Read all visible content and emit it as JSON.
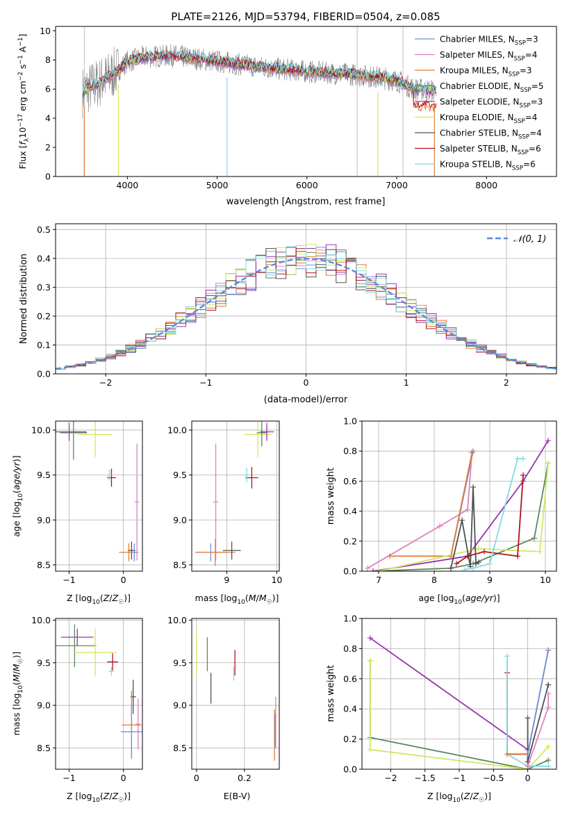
{
  "figure": {
    "title": "PLATE=2126, MJD=53794, FIBERID=0504, z=0.085"
  },
  "colors": {
    "Chabrier MILES": "#6f8fe0",
    "Salpeter MILES": "#e080c0",
    "Kroupa MILES": "#e07a30",
    "Chabrier ELODIE": "#5a8a5a",
    "Salpeter ELODIE": "#9a30b0",
    "Kroupa ELODIE": "#d0e860",
    "Chabrier STELIB": "#505050",
    "Salpeter STELIB": "#b01020",
    "Kroupa STELIB": "#80dbe0",
    "gaussian": "#5b8ad8"
  },
  "chart_data": [
    {
      "id": "spectrum",
      "type": "line",
      "xlabel": "wavelength [Angstrom, rest frame]",
      "ylabel": "Flux [f_λ 10^-17 erg cm^-2 s^-1 A^-1]",
      "xlim": [
        3200,
        8780
      ],
      "ylim": [
        0,
        10.3
      ],
      "xticks": [
        4000,
        5000,
        6000,
        7000,
        8000
      ],
      "yticks": [
        0,
        2,
        4,
        6,
        8,
        10
      ],
      "legend_position": "top-right",
      "legend": [
        {
          "name": "Chabrier MILES",
          "nssp": "3"
        },
        {
          "name": "Salpeter MILES",
          "nssp": "4"
        },
        {
          "name": "Kroupa MILES",
          "nssp": "3"
        },
        {
          "name": "Chabrier ELODIE",
          "nssp": "5"
        },
        {
          "name": "Salpeter ELODIE",
          "nssp": "3"
        },
        {
          "name": "Kroupa ELODIE",
          "nssp": "4"
        },
        {
          "name": "Chabrier STELIB",
          "nssp": "4"
        },
        {
          "name": "Salpeter STELIB",
          "nssp": "6"
        },
        {
          "name": "Kroupa STELIB",
          "nssp": "6"
        }
      ],
      "continuum_nodes": [
        [
          3500,
          5.8
        ],
        [
          3700,
          6.5
        ],
        [
          3900,
          7.3
        ],
        [
          4000,
          7.9
        ],
        [
          4200,
          8.2
        ],
        [
          4500,
          8.3
        ],
        [
          5000,
          7.9
        ],
        [
          5500,
          7.5
        ],
        [
          6000,
          7.2
        ],
        [
          6500,
          7.0
        ],
        [
          6800,
          6.8
        ],
        [
          7000,
          6.6
        ],
        [
          7200,
          6.0
        ],
        [
          7400,
          5.9
        ],
        [
          7600,
          5.8
        ]
      ]
    },
    {
      "id": "residuals",
      "type": "line",
      "xlabel": "(data-model)/error",
      "ylabel": "Normed distribution",
      "xlim": [
        -2.5,
        2.5
      ],
      "ylim": [
        0,
        0.52
      ],
      "xticks": [
        -2,
        -1,
        0,
        1,
        2
      ],
      "yticks": [
        0.0,
        0.1,
        0.2,
        0.3,
        0.4,
        0.5
      ],
      "legend_position": "top-right",
      "gaussian_label": "𝒩(0, 1)",
      "bin_width": 0.1
    },
    {
      "id": "age_vs_Z",
      "type": "scatter",
      "xlabel": "Z [log10(Z/Z☉)]",
      "ylabel": "age [log10(age/yr)]",
      "xlim": [
        -1.25,
        0.35
      ],
      "ylim": [
        8.43,
        10.1
      ],
      "xticks": [
        -1,
        0
      ],
      "yticks": [
        8.5,
        9.0,
        9.5,
        10.0
      ],
      "points": [
        {
          "series": "Salpeter ELODIE",
          "x": -1.0,
          "y": 9.98,
          "xerr": 0.32,
          "yerr": 0.1
        },
        {
          "series": "Chabrier ELODIE",
          "x": -0.92,
          "y": 9.97,
          "xerr": 0.25,
          "yerr": 0.3
        },
        {
          "series": "Kroupa ELODIE",
          "x": -0.52,
          "y": 9.95,
          "xerr": 0.32,
          "yerr": 0.25
        },
        {
          "series": "Salpeter STELIB",
          "x": -0.22,
          "y": 9.47,
          "xerr": 0.08,
          "yerr": 0.1
        },
        {
          "series": "Kroupa STELIB",
          "x": -0.26,
          "y": 9.5,
          "xerr": 0.04,
          "yerr": 0.06
        },
        {
          "series": "Chabrier STELIB",
          "x": 0.15,
          "y": 8.66,
          "xerr": 0.07,
          "yerr": 0.1
        },
        {
          "series": "Kroupa MILES",
          "x": 0.1,
          "y": 8.64,
          "xerr": 0.18,
          "yerr": 0.1
        },
        {
          "series": "Chabrier MILES",
          "x": 0.2,
          "y": 8.64,
          "xerr": 0.05,
          "yerr": 0.1
        },
        {
          "series": "Salpeter MILES",
          "x": 0.25,
          "y": 9.2,
          "xerr": 0.04,
          "yerr": 0.65
        }
      ]
    },
    {
      "id": "age_vs_mass",
      "type": "scatter",
      "xlabel": "mass [log10(M/M☉)]",
      "ylabel": "",
      "xlim": [
        8.3,
        10.05
      ],
      "ylim": [
        8.43,
        10.1
      ],
      "xticks": [
        8,
        9,
        10
      ],
      "yticks": [
        8.5,
        9.0,
        9.5,
        10.0
      ],
      "points": [
        {
          "series": "Chabrier MILES",
          "x": 8.68,
          "y": 8.64,
          "xerr": 0.3,
          "yerr": 0.1
        },
        {
          "series": "Kroupa MILES",
          "x": 8.77,
          "y": 8.64,
          "xerr": 0.4,
          "yerr": 0.15
        },
        {
          "series": "Salpeter MILES",
          "x": 8.78,
          "y": 9.2,
          "xerr": 0.05,
          "yerr": 0.65
        },
        {
          "series": "Chabrier STELIB",
          "x": 9.1,
          "y": 8.66,
          "xerr": 0.18,
          "yerr": 0.1
        },
        {
          "series": "Salpeter STELIB",
          "x": 9.5,
          "y": 9.47,
          "xerr": 0.13,
          "yerr": 0.12
        },
        {
          "series": "Kroupa STELIB",
          "x": 9.4,
          "y": 9.5,
          "xerr": 0.07,
          "yerr": 0.08
        },
        {
          "series": "Kroupa ELODIE",
          "x": 9.62,
          "y": 9.95,
          "xerr": 0.27,
          "yerr": 0.25
        },
        {
          "series": "Chabrier ELODIE",
          "x": 9.7,
          "y": 9.97,
          "xerr": 0.1,
          "yerr": 0.15
        },
        {
          "series": "Salpeter ELODIE",
          "x": 9.8,
          "y": 9.98,
          "xerr": 0.14,
          "yerr": 0.1
        }
      ]
    },
    {
      "id": "weight_vs_age",
      "type": "line",
      "xlabel": "age [log10(age/yr)]",
      "ylabel": "mass weight",
      "xlim": [
        6.7,
        10.2
      ],
      "ylim": [
        0,
        1.0
      ],
      "xticks": [
        7,
        8,
        9,
        10
      ],
      "yticks": [
        0.0,
        0.2,
        0.4,
        0.6,
        0.8,
        1.0
      ],
      "series": [
        {
          "name": "Chabrier MILES",
          "x": [
            8.3,
            8.7,
            8.68
          ],
          "y": [
            0.1,
            0.8,
            0.79
          ]
        },
        {
          "name": "Salpeter MILES",
          "x": [
            6.8,
            8.1,
            8.6,
            8.68
          ],
          "y": [
            0.02,
            0.3,
            0.41,
            0.79
          ]
        },
        {
          "name": "Kroupa MILES",
          "x": [
            7.2,
            8.3,
            8.68
          ],
          "y": [
            0.1,
            0.1,
            0.79
          ]
        },
        {
          "name": "Chabrier ELODIE",
          "x": [
            6.9,
            8.3,
            8.7,
            9.8,
            10.05
          ],
          "y": [
            0.0,
            0.02,
            0.05,
            0.22,
            0.72
          ]
        },
        {
          "name": "Salpeter ELODIE",
          "x": [
            6.9,
            8.6,
            9.6,
            10.05
          ],
          "y": [
            0.0,
            0.1,
            0.6,
            0.87
          ]
        },
        {
          "name": "Kroupa ELODIE",
          "x": [
            7.0,
            8.8,
            9.9,
            10.05
          ],
          "y": [
            0.0,
            0.15,
            0.13,
            0.72
          ]
        },
        {
          "name": "Chabrier STELIB",
          "x": [
            8.3,
            8.5,
            8.65,
            8.7,
            8.75,
            8.8
          ],
          "y": [
            0.02,
            0.34,
            0.03,
            0.56,
            0.05,
            0.06
          ]
        },
        {
          "name": "Salpeter STELIB",
          "x": [
            8.4,
            8.6,
            8.9,
            9.5,
            9.6
          ],
          "y": [
            0.05,
            0.1,
            0.13,
            0.1,
            0.64
          ]
        },
        {
          "name": "Kroupa STELIB",
          "x": [
            8.55,
            8.7,
            9.0,
            9.5,
            9.6
          ],
          "y": [
            0.01,
            0.02,
            0.05,
            0.75,
            0.75
          ]
        }
      ]
    },
    {
      "id": "mass_vs_Z",
      "type": "scatter",
      "xlabel": "Z [log10(Z/Z☉)]",
      "ylabel": "mass [log10(M/M☉)]",
      "xlim": [
        -1.25,
        0.35
      ],
      "ylim": [
        8.25,
        10.02
      ],
      "xticks": [
        -1,
        0
      ],
      "yticks": [
        8.5,
        9.0,
        9.5,
        10.0
      ],
      "points": [
        {
          "series": "Salpeter ELODIE",
          "x": -0.85,
          "y": 9.8,
          "xerr": 0.3,
          "yerr": 0.1
        },
        {
          "series": "Chabrier ELODIE",
          "x": -0.9,
          "y": 9.7,
          "xerr": 0.4,
          "yerr": 0.25
        },
        {
          "series": "Kroupa ELODIE",
          "x": -0.52,
          "y": 9.62,
          "xerr": 0.4,
          "yerr": 0.28
        },
        {
          "series": "Salpeter STELIB",
          "x": -0.2,
          "y": 9.51,
          "xerr": 0.1,
          "yerr": 0.1
        },
        {
          "series": "Kroupa STELIB",
          "x": -0.22,
          "y": 9.4,
          "xerr": 0.05,
          "yerr": 0.05
        },
        {
          "series": "Chabrier STELIB",
          "x": 0.18,
          "y": 9.1,
          "xerr": 0.05,
          "yerr": 0.2
        },
        {
          "series": "Kroupa MILES",
          "x": 0.15,
          "y": 8.77,
          "xerr": 0.18,
          "yerr": 0.4
        },
        {
          "series": "Salpeter MILES",
          "x": 0.27,
          "y": 8.78,
          "xerr": 0.04,
          "yerr": 0.3
        },
        {
          "series": "Chabrier MILES",
          "x": 0.15,
          "y": 8.69,
          "xerr": 0.2,
          "yerr": 0.3
        }
      ]
    },
    {
      "id": "mass_vs_ebv",
      "type": "scatter",
      "xlabel": "E(B-V)",
      "ylabel": "",
      "xlim": [
        -0.02,
        0.345
      ],
      "ylim": [
        8.25,
        10.02
      ],
      "xticks": [
        0.0,
        0.2
      ],
      "yticks": [
        8.5,
        9.0,
        9.5,
        10.0
      ],
      "points": [
        {
          "series": "Kroupa ELODIE",
          "x": 0.0,
          "y": 9.62,
          "yerr": 0.28
        },
        {
          "series": "Chabrier ELODIE",
          "x": 0.045,
          "y": 9.6,
          "yerr": 0.2
        },
        {
          "series": "Chabrier STELIB",
          "x": 0.06,
          "y": 9.2,
          "yerr": 0.18
        },
        {
          "series": "Kroupa STELIB",
          "x": 0.155,
          "y": 9.37,
          "yerr": 0.08
        },
        {
          "series": "Salpeter STELIB",
          "x": 0.16,
          "y": 9.5,
          "yerr": 0.15
        },
        {
          "series": "Salpeter MILES",
          "x": 0.33,
          "y": 8.8,
          "yerr": 0.3
        },
        {
          "series": "Kroupa MILES",
          "x": 0.325,
          "y": 8.65,
          "yerr": 0.3
        },
        {
          "series": "Chabrier MILES",
          "x": 0.328,
          "y": 8.7,
          "yerr": 0.2
        }
      ]
    },
    {
      "id": "weight_vs_Z",
      "type": "line",
      "xlabel": "Z [log10(Z/Z☉)]",
      "ylabel": "mass weight",
      "xlim": [
        -2.42,
        0.42
      ],
      "ylim": [
        0,
        1.0
      ],
      "xticks": [
        -2.0,
        -1.5,
        -1.0,
        -0.5,
        0.0
      ],
      "yticks": [
        0.0,
        0.2,
        0.4,
        0.6,
        0.8,
        1.0
      ],
      "series": [
        {
          "name": "Salpeter ELODIE",
          "x": [
            -2.3,
            0.0,
            0.0
          ],
          "y": [
            0.87,
            0.13,
            0.1
          ]
        },
        {
          "name": "Chabrier ELODIE",
          "x": [
            -2.3,
            -2.3,
            0.0,
            0.3
          ],
          "y": [
            0.72,
            0.21,
            0.0,
            0.06
          ]
        },
        {
          "name": "Kroupa ELODIE",
          "x": [
            -2.3,
            -2.3,
            0.0,
            0.3
          ],
          "y": [
            0.72,
            0.13,
            0.0,
            0.15
          ]
        },
        {
          "name": "Salpeter STELIB",
          "x": [
            -0.3,
            -0.3,
            0.0,
            0.0
          ],
          "y": [
            0.64,
            0.1,
            0.1,
            0.0
          ]
        },
        {
          "name": "Kroupa STELIB",
          "x": [
            -0.3,
            -0.3,
            0.0,
            0.3
          ],
          "y": [
            0.75,
            0.1,
            0.02,
            0.02
          ]
        },
        {
          "name": "Chabrier STELIB",
          "x": [
            0.0,
            0.0,
            0.3,
            0.3
          ],
          "y": [
            0.34,
            0.05,
            0.56,
            0.56
          ]
        },
        {
          "name": "Kroupa MILES",
          "x": [
            -0.3,
            0.0,
            0.3
          ],
          "y": [
            0.1,
            0.1,
            0.79
          ]
        },
        {
          "name": "Salpeter MILES",
          "x": [
            0.0,
            0.3,
            0.3
          ],
          "y": [
            0.02,
            0.41,
            0.5
          ]
        },
        {
          "name": "Chabrier MILES",
          "x": [
            0.0,
            0.3
          ],
          "y": [
            0.1,
            0.79
          ]
        }
      ]
    }
  ]
}
